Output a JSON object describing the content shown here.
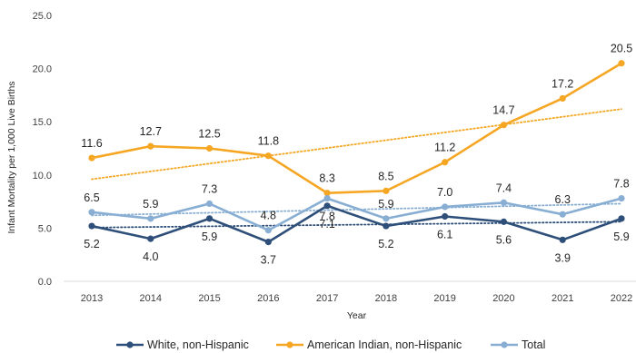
{
  "chart_data": {
    "type": "line",
    "title": "",
    "xlabel": "Year",
    "ylabel": "Infant Mortality per 1,000 Live Births",
    "categories": [
      "2013",
      "2014",
      "2015",
      "2016",
      "2017",
      "2018",
      "2019",
      "2020",
      "2021",
      "2022"
    ],
    "ylim": [
      0,
      25
    ],
    "yticks": [
      "0.0",
      "5.0",
      "10.0",
      "15.0",
      "20.0",
      "25.0"
    ],
    "grid": false,
    "legend_position": "bottom",
    "series": [
      {
        "name": "White, non-Hispanic",
        "color": "#2e4f79",
        "values": [
          5.2,
          4.0,
          5.9,
          3.7,
          7.1,
          5.2,
          6.1,
          5.6,
          3.9,
          5.9
        ],
        "labels": [
          "5.2",
          "4.0",
          "5.9",
          "3.7",
          "7.1",
          "5.2",
          "6.1",
          "5.6",
          "3.9",
          "5.9"
        ],
        "label_side": [
          "below",
          "below",
          "below",
          "below",
          "below",
          "below",
          "below",
          "below",
          "below",
          "below"
        ],
        "trendline": [
          5.05,
          5.6
        ]
      },
      {
        "name": "American Indian, non-Hispanic",
        "color": "#f5a623",
        "values": [
          11.6,
          12.7,
          12.5,
          11.8,
          8.3,
          8.5,
          11.2,
          14.7,
          17.2,
          20.5
        ],
        "labels": [
          "11.6",
          "12.7",
          "12.5",
          "11.8",
          "8.3",
          "8.5",
          "11.2",
          "14.7",
          "17.2",
          "20.5"
        ],
        "label_side": [
          "above",
          "above",
          "above",
          "above",
          "above",
          "above",
          "above",
          "above",
          "above",
          "above"
        ],
        "trendline": [
          9.6,
          16.2
        ]
      },
      {
        "name": "Total",
        "color": "#88aed3",
        "values": [
          6.5,
          5.9,
          7.3,
          4.8,
          7.8,
          5.9,
          7.0,
          7.4,
          6.3,
          7.8
        ],
        "labels": [
          "6.5",
          "5.9",
          "7.3",
          "4.8",
          "7.8",
          "5.9",
          "7.0",
          "7.4",
          "6.3",
          "7.8"
        ],
        "label_side": [
          "above",
          "above",
          "above",
          "above",
          "below",
          "above",
          "above",
          "above",
          "above",
          "above"
        ],
        "trendline": [
          6.2,
          7.3
        ]
      }
    ]
  }
}
